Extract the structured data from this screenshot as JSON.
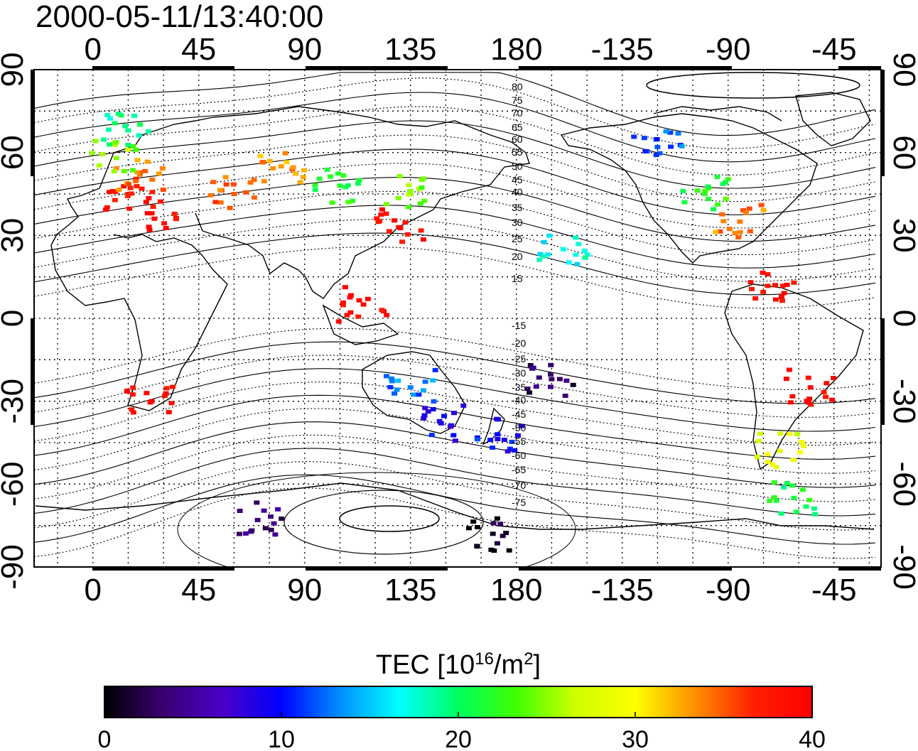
{
  "title": "2000-05-11/13:40:00",
  "map": {
    "lon_ticks": [
      "0",
      "45",
      "90",
      "135",
      "180",
      "-135",
      "-90",
      "-45"
    ],
    "lat_ticks": [
      "90",
      "60",
      "30",
      "0",
      "-30",
      "-60",
      "-90"
    ],
    "magnetic_contour_labels": [
      "80",
      "75",
      "70",
      "65",
      "60",
      "55",
      "50",
      "45",
      "40",
      "35",
      "30",
      "25",
      "20",
      "15",
      "-15",
      "-20",
      "-25",
      "-30",
      "-35",
      "-40",
      "-45",
      "-50",
      "-55",
      "-60",
      "-65",
      "-70",
      "-75"
    ]
  },
  "colorbar": {
    "title_main": "TEC  [10",
    "title_sup1": "16",
    "title_mid": "/m",
    "title_sup2": "2",
    "title_end": "]",
    "ticks": [
      "0",
      "10",
      "20",
      "30",
      "40"
    ],
    "min": 0,
    "max": 40,
    "colormap": [
      "#000000",
      "#3a0070",
      "#4a00c8",
      "#0000ff",
      "#0090ff",
      "#00ffff",
      "#00ff60",
      "#40ff00",
      "#d0ff00",
      "#ffff00",
      "#ff9000",
      "#ff2000",
      "#ff0000"
    ]
  },
  "chart_data": {
    "type": "heatmap",
    "title": "2000-05-11/13:40:00",
    "colorbar_label": "TEC [10^16/m^2]",
    "value_range": [
      0,
      40
    ],
    "grid": true,
    "points": [
      {
        "lon": 15,
        "lat": 45,
        "tec": 38
      },
      {
        "lon": 20,
        "lat": 52,
        "tec": 34
      },
      {
        "lon": 10,
        "lat": 58,
        "tec": 25
      },
      {
        "lon": 15,
        "lat": 68,
        "tec": 19
      },
      {
        "lon": 25,
        "lat": 38,
        "tec": 39
      },
      {
        "lon": 60,
        "lat": 45,
        "tec": 35
      },
      {
        "lon": 80,
        "lat": 55,
        "tec": 33
      },
      {
        "lon": 105,
        "lat": 48,
        "tec": 22
      },
      {
        "lon": 130,
        "lat": 33,
        "tec": 39
      },
      {
        "lon": 135,
        "lat": 45,
        "tec": 25
      },
      {
        "lon": 115,
        "lat": 5,
        "tec": 39
      },
      {
        "lon": 135,
        "lat": -25,
        "tec": 13
      },
      {
        "lon": 148,
        "lat": -38,
        "tec": 9
      },
      {
        "lon": 172,
        "lat": -42,
        "tec": 10
      },
      {
        "lon": 25,
        "lat": -30,
        "tec": 39
      },
      {
        "lon": -100,
        "lat": 45,
        "tec": 22
      },
      {
        "lon": -85,
        "lat": 35,
        "tec": 34
      },
      {
        "lon": -120,
        "lat": 62,
        "tec": 12
      },
      {
        "lon": -70,
        "lat": 12,
        "tec": 39
      },
      {
        "lon": -55,
        "lat": -25,
        "tec": 39
      },
      {
        "lon": -68,
        "lat": -48,
        "tec": 28
      },
      {
        "lon": -62,
        "lat": -65,
        "tec": 21
      },
      {
        "lon": 70,
        "lat": -73,
        "tec": 4
      },
      {
        "lon": 170,
        "lat": -78,
        "tec": 1
      },
      {
        "lon": -165,
        "lat": -22,
        "tec": 3
      },
      {
        "lon": -160,
        "lat": 25,
        "tec": 17
      }
    ]
  }
}
